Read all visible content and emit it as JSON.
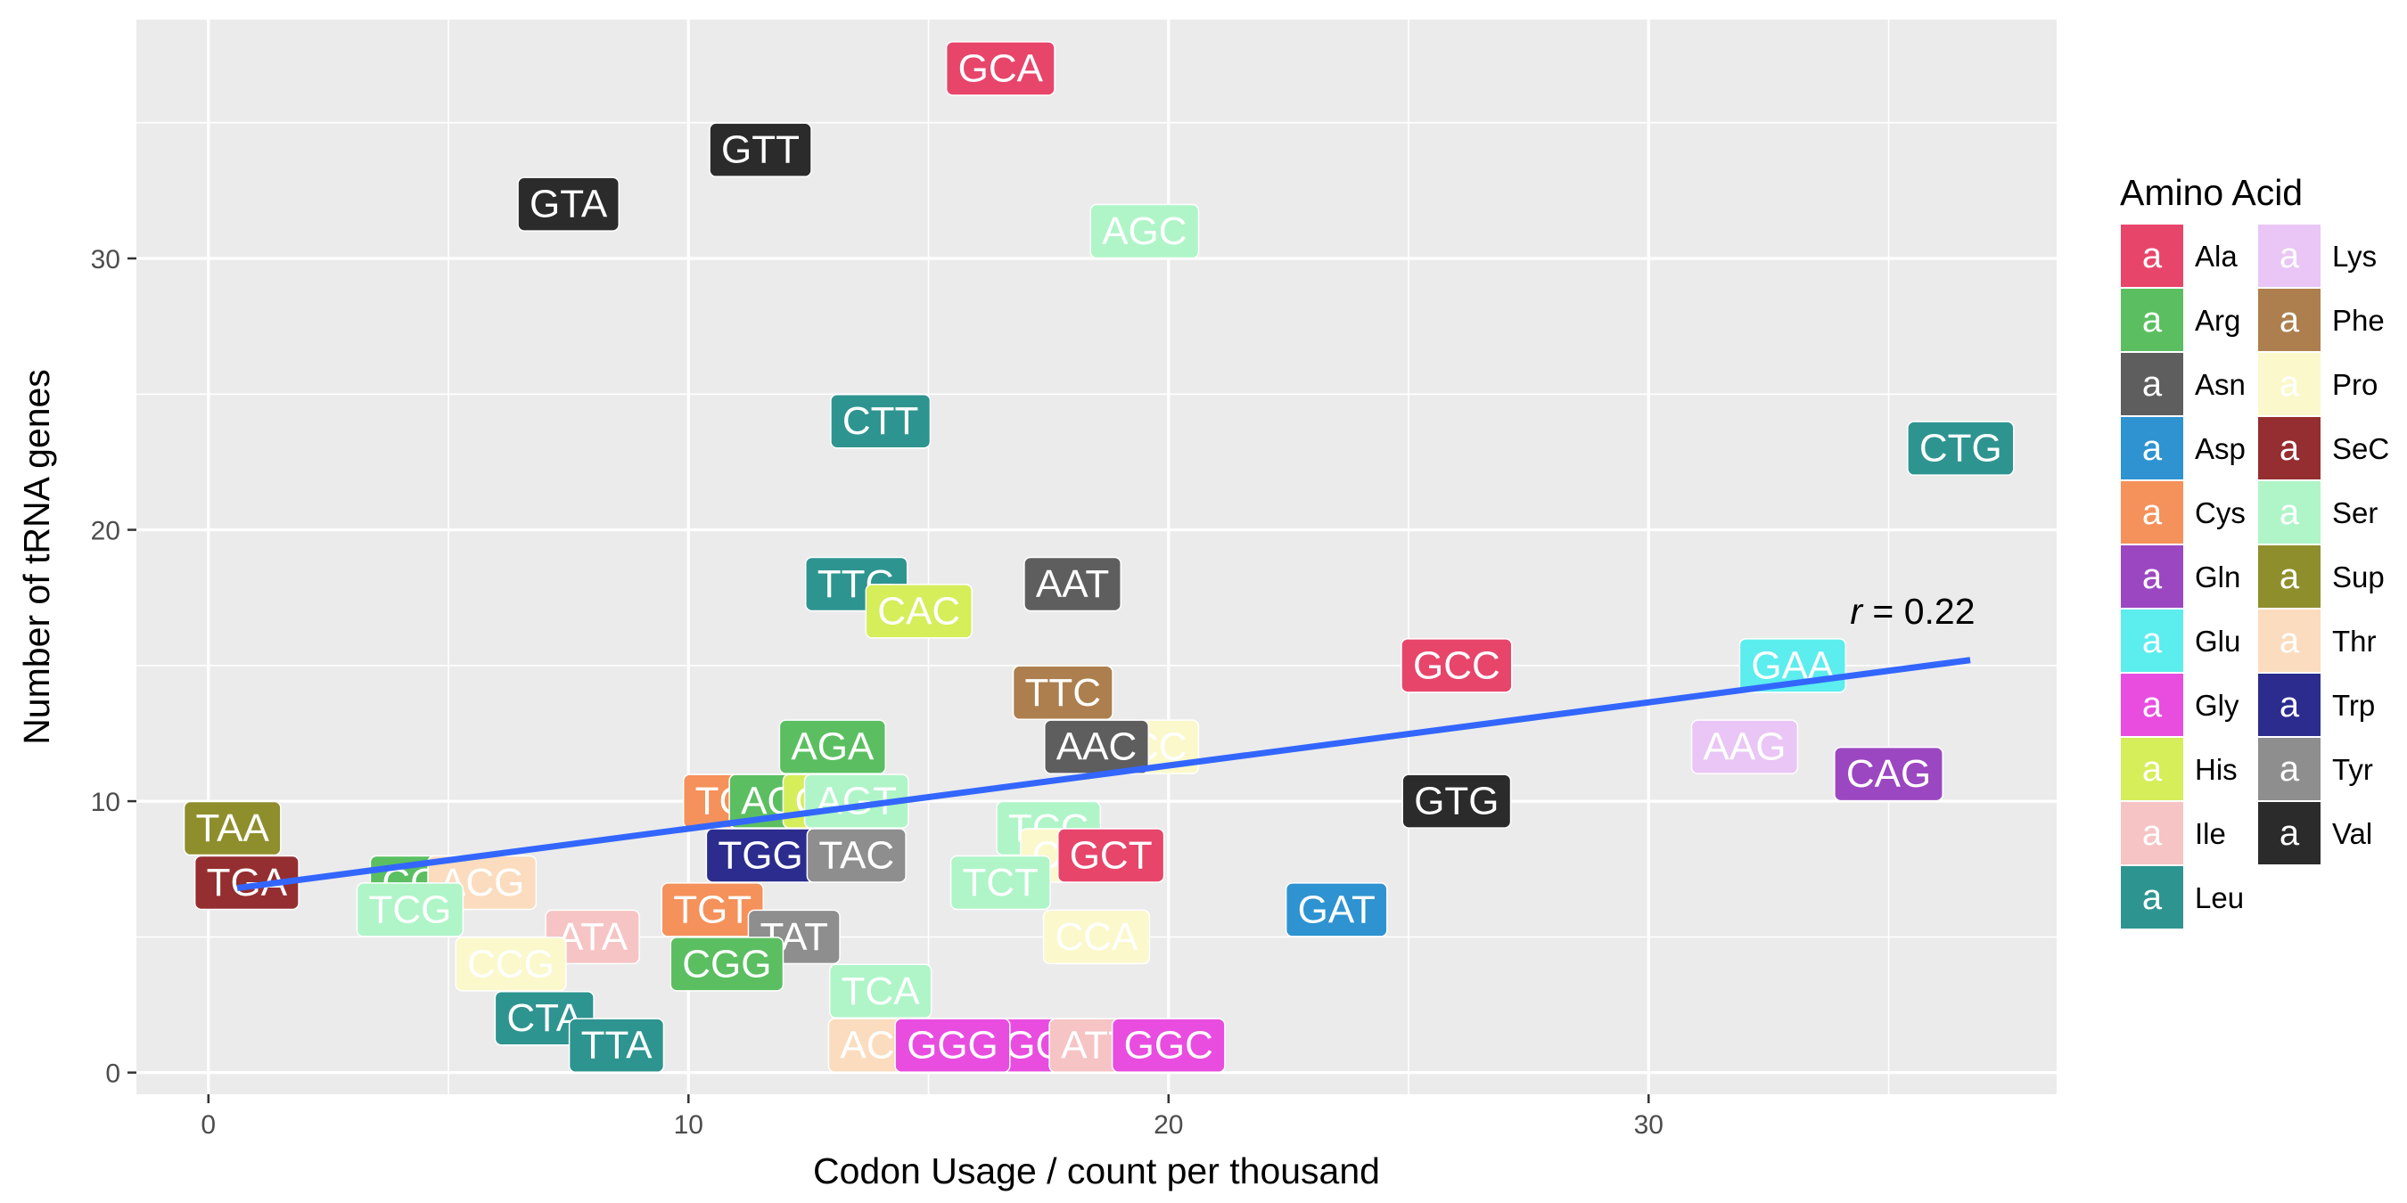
{
  "chart_data": {
    "type": "scatter",
    "xlabel": "Codon Usage / count per thousand",
    "ylabel": "Number of tRNA genes",
    "xlim": [
      -1.5,
      38.5
    ],
    "ylim": [
      -0.8,
      38.8
    ],
    "x_ticks": [
      0,
      10,
      20,
      30
    ],
    "y_ticks": [
      0,
      10,
      20,
      30
    ],
    "grid": true,
    "panel_background": "#EBEBEB",
    "annotation": {
      "italic": "r",
      "text": " = 0.22",
      "x": 35.5,
      "y": 17
    },
    "trend_line": {
      "color": "#3366FF",
      "x": [
        0.6,
        36.7
      ],
      "y": [
        6.8,
        15.2
      ]
    },
    "legend": {
      "title": "Amino Acid",
      "position": "right",
      "key_glyph": "a",
      "entries": [
        {
          "name": "Ala",
          "color": "#E8456B"
        },
        {
          "name": "Arg",
          "color": "#5BBF61"
        },
        {
          "name": "Asn",
          "color": "#5E5E5E"
        },
        {
          "name": "Asp",
          "color": "#2E93D0"
        },
        {
          "name": "Cys",
          "color": "#F5915A"
        },
        {
          "name": "Gln",
          "color": "#9C47C2"
        },
        {
          "name": "Glu",
          "color": "#5CEDEE"
        },
        {
          "name": "Gly",
          "color": "#E84DE0"
        },
        {
          "name": "His",
          "color": "#D5EE5A"
        },
        {
          "name": "Ile",
          "color": "#F6C4C4"
        },
        {
          "name": "Leu",
          "color": "#2E9490"
        },
        {
          "name": "Lys",
          "color": "#E9C6F5"
        },
        {
          "name": "Phe",
          "color": "#AD7F4E"
        },
        {
          "name": "Pro",
          "color": "#FBF8CC"
        },
        {
          "name": "SeC",
          "color": "#952E30"
        },
        {
          "name": "Ser",
          "color": "#AFF5C8"
        },
        {
          "name": "Sup",
          "color": "#8F8E2C"
        },
        {
          "name": "Thr",
          "color": "#FBDCBE"
        },
        {
          "name": "Trp",
          "color": "#2B2C8E"
        },
        {
          "name": "Tyr",
          "color": "#8E8E8E"
        },
        {
          "name": "Val",
          "color": "#2B2B2B"
        }
      ]
    },
    "points": [
      {
        "codon": "GCA",
        "aa": "Ala",
        "x": 16.5,
        "y": 37
      },
      {
        "codon": "GTT",
        "aa": "Val",
        "x": 11.5,
        "y": 34
      },
      {
        "codon": "GTA",
        "aa": "Val",
        "x": 7.5,
        "y": 32
      },
      {
        "codon": "AGC",
        "aa": "Ser",
        "x": 19.5,
        "y": 31
      },
      {
        "codon": "CTT",
        "aa": "Leu",
        "x": 14.0,
        "y": 24
      },
      {
        "codon": "CTG",
        "aa": "Leu",
        "x": 36.5,
        "y": 23
      },
      {
        "codon": "TTG",
        "aa": "Leu",
        "x": 13.5,
        "y": 18
      },
      {
        "codon": "AAT",
        "aa": "Asn",
        "x": 18.0,
        "y": 18
      },
      {
        "codon": "CAC",
        "aa": "His",
        "x": 14.8,
        "y": 17
      },
      {
        "codon": "GCC",
        "aa": "Ala",
        "x": 26.0,
        "y": 15
      },
      {
        "codon": "GAA",
        "aa": "Glu",
        "x": 33.0,
        "y": 15
      },
      {
        "codon": "TTC",
        "aa": "Phe",
        "x": 17.8,
        "y": 14
      },
      {
        "codon": "CCC",
        "aa": "Pro",
        "x": 19.5,
        "y": 12
      },
      {
        "codon": "AGA",
        "aa": "Arg",
        "x": 13.0,
        "y": 12
      },
      {
        "codon": "AAC",
        "aa": "Asn",
        "x": 18.5,
        "y": 12
      },
      {
        "codon": "AAG",
        "aa": "Lys",
        "x": 32.0,
        "y": 12
      },
      {
        "codon": "CAG",
        "aa": "Gln",
        "x": 35.0,
        "y": 11
      },
      {
        "codon": "TGC",
        "aa": "Cys",
        "x": 11.0,
        "y": 10
      },
      {
        "codon": "AGG",
        "aa": "Arg",
        "x": 12.0,
        "y": 10
      },
      {
        "codon": "CAT",
        "aa": "His",
        "x": 13.0,
        "y": 10
      },
      {
        "codon": "AGT",
        "aa": "Ser",
        "x": 13.5,
        "y": 10
      },
      {
        "codon": "GTG",
        "aa": "Val",
        "x": 26.0,
        "y": 10
      },
      {
        "codon": "TAA",
        "aa": "Sup",
        "x": 0.5,
        "y": 9
      },
      {
        "codon": "TCC",
        "aa": "Ser",
        "x": 17.5,
        "y": 9
      },
      {
        "codon": "TGG",
        "aa": "Trp",
        "x": 11.5,
        "y": 8
      },
      {
        "codon": "TAC",
        "aa": "Tyr",
        "x": 13.5,
        "y": 8
      },
      {
        "codon": "CCT",
        "aa": "Pro",
        "x": 18.0,
        "y": 8
      },
      {
        "codon": "GCT",
        "aa": "Ala",
        "x": 18.8,
        "y": 8
      },
      {
        "codon": "TGA",
        "aa": "SeC",
        "x": 0.8,
        "y": 7
      },
      {
        "codon": "CGA",
        "aa": "Arg",
        "x": 4.5,
        "y": 7
      },
      {
        "codon": "ACG",
        "aa": "Thr",
        "x": 5.7,
        "y": 7
      },
      {
        "codon": "TCT",
        "aa": "Ser",
        "x": 16.5,
        "y": 7
      },
      {
        "codon": "TGT",
        "aa": "Cys",
        "x": 10.5,
        "y": 6
      },
      {
        "codon": "TCG",
        "aa": "Ser",
        "x": 4.2,
        "y": 6
      },
      {
        "codon": "GAT",
        "aa": "Asp",
        "x": 23.5,
        "y": 6
      },
      {
        "codon": "ATA",
        "aa": "Ile",
        "x": 8.0,
        "y": 5
      },
      {
        "codon": "TAT",
        "aa": "Tyr",
        "x": 12.2,
        "y": 5
      },
      {
        "codon": "CCA",
        "aa": "Pro",
        "x": 18.5,
        "y": 5
      },
      {
        "codon": "CCG",
        "aa": "Pro",
        "x": 6.3,
        "y": 4
      },
      {
        "codon": "CGG",
        "aa": "Arg",
        "x": 10.8,
        "y": 4
      },
      {
        "codon": "TCA",
        "aa": "Ser",
        "x": 14.0,
        "y": 3
      },
      {
        "codon": "CTA",
        "aa": "Leu",
        "x": 7.0,
        "y": 2
      },
      {
        "codon": "TTA",
        "aa": "Leu",
        "x": 8.5,
        "y": 1
      },
      {
        "codon": "ACA",
        "aa": "Thr",
        "x": 14.0,
        "y": 1
      },
      {
        "codon": "GGA",
        "aa": "Gly",
        "x": 17.5,
        "y": 1
      },
      {
        "codon": "ATT",
        "aa": "Ile",
        "x": 18.5,
        "y": 1
      },
      {
        "codon": "GGG",
        "aa": "Gly",
        "x": 15.5,
        "y": 1
      },
      {
        "codon": "GGC",
        "aa": "Gly",
        "x": 20.0,
        "y": 1
      }
    ]
  }
}
